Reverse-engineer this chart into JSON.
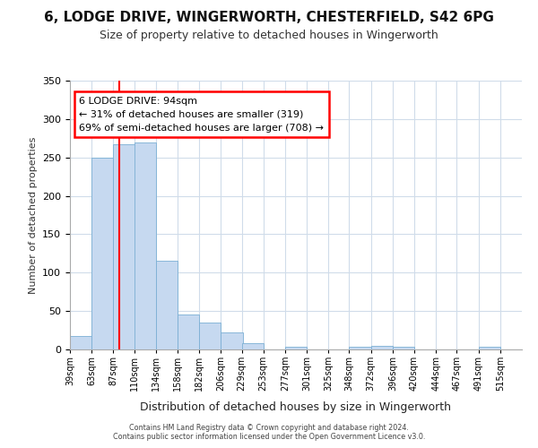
{
  "title_line1": "6, LODGE DRIVE, WINGERWORTH, CHESTERFIELD, S42 6PG",
  "title_line2": "Size of property relative to detached houses in Wingerworth",
  "xlabel": "Distribution of detached houses by size in Wingerworth",
  "ylabel": "Number of detached properties",
  "bins": [
    "39sqm",
    "63sqm",
    "87sqm",
    "110sqm",
    "134sqm",
    "158sqm",
    "182sqm",
    "206sqm",
    "229sqm",
    "253sqm",
    "277sqm",
    "301sqm",
    "325sqm",
    "348sqm",
    "372sqm",
    "396sqm",
    "420sqm",
    "444sqm",
    "467sqm",
    "491sqm",
    "515sqm"
  ],
  "bin_edges": [
    39,
    63,
    87,
    110,
    134,
    158,
    182,
    206,
    229,
    253,
    277,
    301,
    325,
    348,
    372,
    396,
    420,
    444,
    467,
    491,
    515
  ],
  "heights": [
    18,
    250,
    267,
    270,
    116,
    45,
    35,
    22,
    8,
    0,
    4,
    0,
    0,
    4,
    5,
    4,
    0,
    0,
    0,
    4,
    0
  ],
  "bar_color": "#c6d9f0",
  "bar_edge_color": "#7bafd4",
  "grid_color": "#d0dcea",
  "background_color": "#ffffff",
  "red_line_x": 94,
  "annotation_text": "6 LODGE DRIVE: 94sqm\n← 31% of detached houses are smaller (319)\n69% of semi-detached houses are larger (708) →",
  "footer_line1": "Contains HM Land Registry data © Crown copyright and database right 2024.",
  "footer_line2": "Contains public sector information licensed under the Open Government Licence v3.0.",
  "ylim": [
    0,
    350
  ],
  "yticks": [
    0,
    50,
    100,
    150,
    200,
    250,
    300,
    350
  ]
}
